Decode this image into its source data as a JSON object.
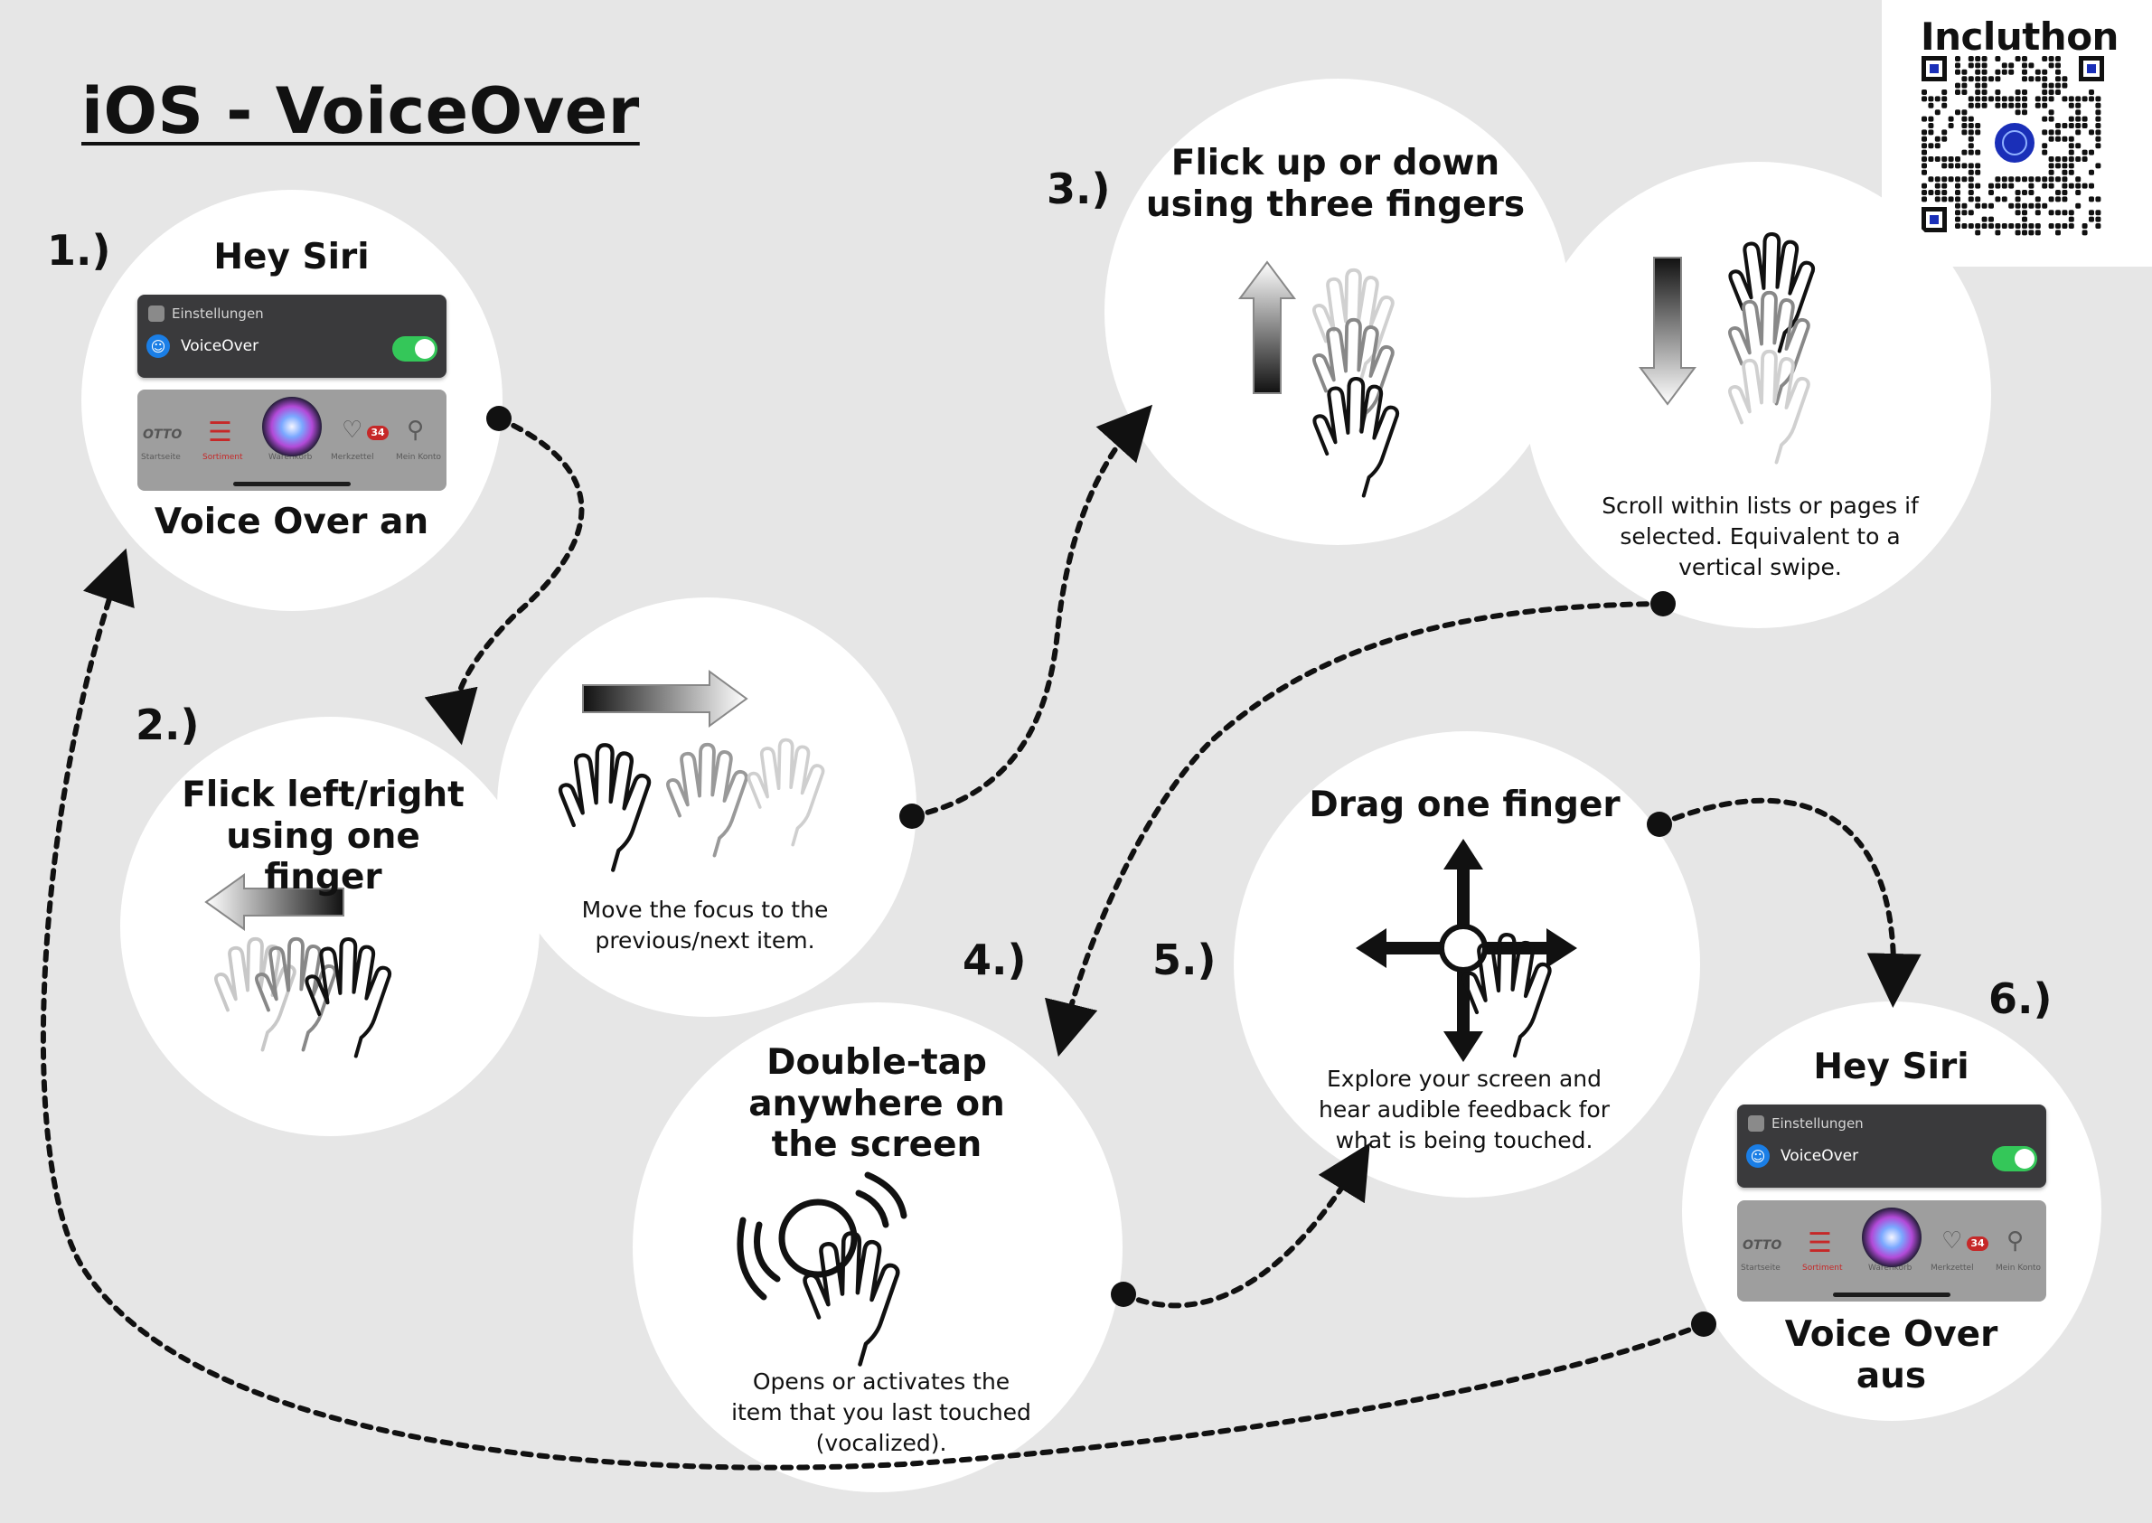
{
  "title": "iOS - VoiceOver",
  "brand": "Incluthon",
  "steps": {
    "s1": "1.)",
    "s2": "2.)",
    "s3": "3.)",
    "s4": "4.)",
    "s5": "5.)",
    "s6": "6.)"
  },
  "step1": {
    "heading": "Hey Siri",
    "settings_header": "Einstellungen",
    "setting_label": "VoiceOver",
    "tabs": [
      "Startseite",
      "Sortiment",
      "Warenkorb",
      "Merkzettel",
      "Mein Konto"
    ],
    "otto_logo": "OTTO",
    "badge": "34",
    "caption": "Voice Over an"
  },
  "step2": {
    "heading": "Flick left/right using one finger",
    "description": "Move the focus to the previous/next item."
  },
  "step3": {
    "heading": "Flick up or down using three fingers",
    "description": "Scroll within lists or pages if selected. Equivalent to a vertical swipe."
  },
  "step4": {
    "heading": "Double-tap anywhere on the screen",
    "description": "Opens or activates the item that you last touched (vocalized)."
  },
  "step5": {
    "heading": "Drag one finger",
    "description": "Explore your screen and hear audible feedback for what is being touched."
  },
  "step6": {
    "heading": "Hey Siri",
    "settings_header": "Einstellungen",
    "setting_label": "VoiceOver",
    "tabs": [
      "Startseite",
      "Sortiment",
      "Warenkorb",
      "Merkzettel",
      "Mein Konto"
    ],
    "otto_logo": "OTTO",
    "badge": "34",
    "caption": "Voice Over aus"
  },
  "colors": {
    "background": "#e6e6e6",
    "circle": "#ffffff",
    "toggle_on": "#34c759",
    "voiceover_blue": "#1a7ee6",
    "badge_red": "#c62828"
  },
  "icons": [
    "hand-gesture-icon",
    "arrow-icon",
    "siri-orb-icon",
    "qr-code-icon",
    "move-cross-icon"
  ]
}
